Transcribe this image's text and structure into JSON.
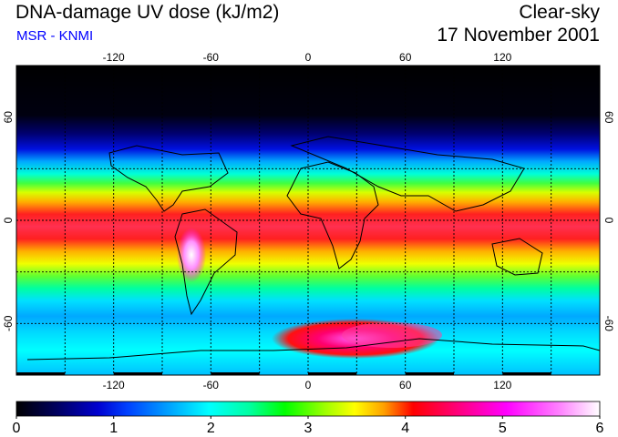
{
  "header": {
    "title": "DNA-damage UV dose (kJ/m2)",
    "source": "MSR - KNMI",
    "sky_condition": "Clear-sky",
    "date": "17 November 2001"
  },
  "map": {
    "projection": "equirectangular",
    "lon_range": [
      -180,
      180
    ],
    "lat_range": [
      -90,
      90
    ],
    "lon_ticks": [
      "-120",
      "-60",
      "0",
      "60",
      "120"
    ],
    "lat_ticks": [
      "60",
      "0",
      "-60"
    ],
    "grid": "dashed",
    "field": "DNA-damage UV dose",
    "color_scale": {
      "min": 0,
      "max": 6,
      "labels": [
        "0",
        "1",
        "2",
        "3",
        "4",
        "5",
        "6"
      ],
      "colors": [
        "#000000",
        "#000060",
        "#0000ff",
        "#00a0ff",
        "#00ffff",
        "#00ffa0",
        "#00ff00",
        "#a0ff00",
        "#ffff00",
        "#ffa000",
        "#ff0000",
        "#ff0080",
        "#ff00ff",
        "#ff80ff",
        "#ffffff"
      ]
    }
  }
}
